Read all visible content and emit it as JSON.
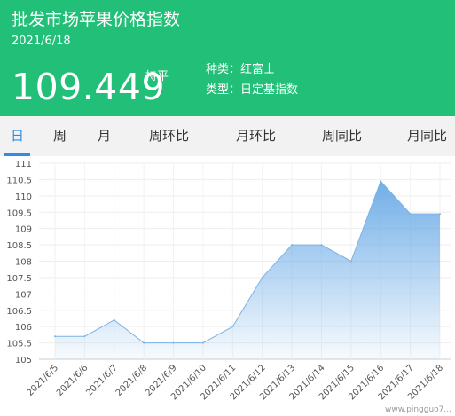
{
  "header": {
    "title": "批发市场苹果价格指数",
    "date": "2021/6/18",
    "value": "109.449",
    "change": "持平",
    "meta_lines": [
      "种类：红富士",
      "类型：日定基指数"
    ]
  },
  "tabs": [
    {
      "label": "日",
      "active": true
    },
    {
      "label": "周",
      "active": false
    },
    {
      "label": "月",
      "active": false
    },
    {
      "label": "周环比",
      "active": false
    },
    {
      "label": "月环比",
      "active": false
    },
    {
      "label": "周同比",
      "active": false
    },
    {
      "label": "月同比",
      "active": false
    }
  ],
  "colors": {
    "header_bg": "#21bf77",
    "accent": "#2e8de6",
    "series_line": "#7ab3e6"
  },
  "chart_data": {
    "type": "area",
    "categories": [
      "2021/6/5",
      "2021/6/6",
      "2021/6/7",
      "2021/6/8",
      "2021/6/9",
      "2021/6/10",
      "2021/6/11",
      "2021/6/12",
      "2021/6/13",
      "2021/6/14",
      "2021/6/15",
      "2021/6/16",
      "2021/6/17",
      "2021/6/18"
    ],
    "values": [
      105.7,
      105.7,
      106.2,
      105.5,
      105.5,
      105.5,
      106.0,
      107.5,
      108.5,
      108.5,
      108.0,
      110.45,
      109.45,
      109.45
    ],
    "yticks": [
      105,
      105.5,
      106,
      106.5,
      107,
      107.5,
      108,
      108.5,
      109,
      109.5,
      110,
      110.5,
      111
    ],
    "ylim": [
      105,
      111
    ],
    "grid": true
  },
  "watermark": "www.pingguo7..."
}
